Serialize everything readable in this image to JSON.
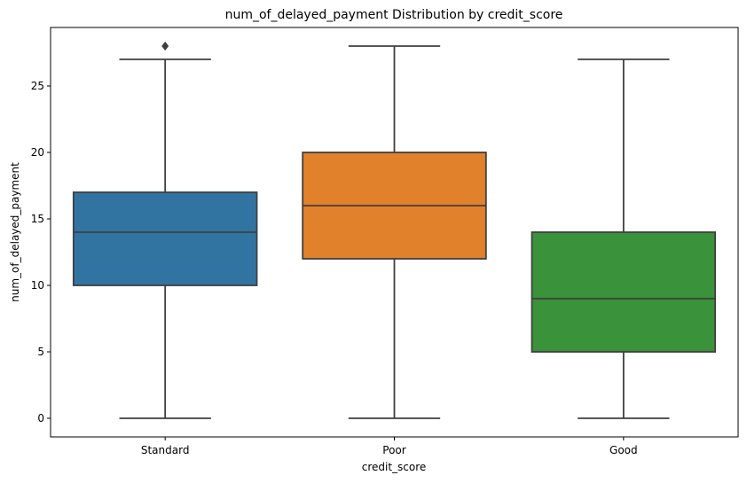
{
  "chart_data": {
    "type": "box",
    "title": "num_of_delayed_payment Distribution by credit_score",
    "xlabel": "credit_score",
    "ylabel": "num_of_delayed_payment",
    "ylim": [
      -1.4,
      29.4
    ],
    "yticks": [
      0,
      5,
      10,
      15,
      20,
      25
    ],
    "grid": false,
    "categories": [
      "Standard",
      "Poor",
      "Good"
    ],
    "colors": [
      "#3274a1",
      "#e1812c",
      "#3a923a"
    ],
    "series": [
      {
        "category": "Standard",
        "whisker_low": 0,
        "q1": 10,
        "median": 14,
        "q3": 17,
        "whisker_high": 27,
        "outliers": [
          28
        ]
      },
      {
        "category": "Poor",
        "whisker_low": 0,
        "q1": 12,
        "median": 16,
        "q3": 20,
        "whisker_high": 28,
        "outliers": []
      },
      {
        "category": "Good",
        "whisker_low": 0,
        "q1": 5,
        "median": 9,
        "q3": 14,
        "whisker_high": 27,
        "outliers": []
      }
    ]
  }
}
